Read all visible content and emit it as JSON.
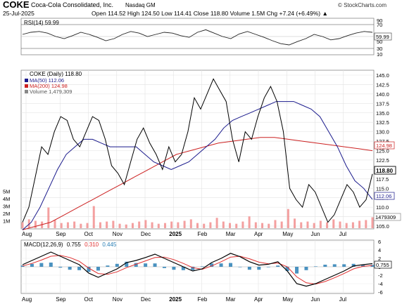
{
  "header": {
    "symbol": "COKE",
    "company": "Coca-Cola Consolidated, Inc.",
    "exchange": "Nasdaq GM",
    "watermark": "© StockCharts.com",
    "date": "25-Jul-2025",
    "quote_line": "Open 114.52  High 124.50  Low 114.41  Close 118.80  Volume 1.5M  Chg +7.24 (+6.49%) ▲"
  },
  "colors": {
    "price": "#000000",
    "ma50": "#1a1a8c",
    "ma200": "#cc2020",
    "volume": "#f08080",
    "macd_hist": "#2a7fb5",
    "grid": "#d0d0d0"
  },
  "rsi_panel": {
    "label": "RSI(14) 59.99",
    "ticks": [
      "70",
      "50",
      "30"
    ],
    "value_badge": "59.99",
    "top_tick": "90",
    "bottom_tick": "10",
    "value": 59.99
  },
  "price_panel": {
    "legend_title": "COKE (Daily) 118.80",
    "legend_ma50": "MA(50) 112.06",
    "legend_ma200": "MA(200) 124.98",
    "legend_volume": "Volume 1,479,309",
    "badge_close": "118.80",
    "badge_ma200": "124.98",
    "badge_ma50": "112.06",
    "badge_volume": "1479309",
    "y_ticks": [
      "145.0",
      "142.5",
      "140.0",
      "137.5",
      "135.0",
      "132.5",
      "130.0",
      "127.5",
      "125.0",
      "122.5",
      "120.0",
      "117.5",
      "115.0",
      "112.5",
      "110.0",
      "107.5",
      "105.0"
    ],
    "volume_ticks": [
      "5M",
      "4M",
      "3M",
      "2M",
      "1M"
    ]
  },
  "macd_panel": {
    "label_prefix": "MACD(12,26,9)",
    "macd": "0.755",
    "signal": "0.310",
    "hist": "0.445",
    "badge": "0.755",
    "ticks": [
      "6",
      "4",
      "2",
      "0",
      "-2",
      "-4",
      "-6"
    ]
  },
  "x_labels": [
    "Aug",
    "Sep",
    "Oct",
    "Nov",
    "Dec",
    "2025",
    "Feb",
    "Mar",
    "Apr",
    "May",
    "Jun",
    "Jul"
  ],
  "chart_data": {
    "type": "line",
    "x_range": [
      "Jul-2024",
      "25-Jul-2025"
    ],
    "ylim": [
      104,
      146
    ],
    "months": [
      "Aug",
      "Sep",
      "Oct",
      "Nov",
      "Dec",
      "2025",
      "Feb",
      "Mar",
      "Apr",
      "May",
      "Jun",
      "Jul"
    ],
    "price_close": [
      106,
      110,
      118,
      126,
      124,
      130,
      134,
      133,
      128,
      126,
      130,
      134,
      133,
      128,
      121,
      119,
      116,
      122,
      128,
      131,
      127,
      124,
      120,
      126,
      122,
      124,
      130,
      139,
      136,
      140,
      144,
      141,
      138,
      128,
      122,
      130,
      128,
      134,
      139,
      142,
      138,
      130,
      115,
      112,
      110,
      116,
      114,
      110,
      106,
      108,
      112,
      116,
      114,
      110,
      112,
      118.8
    ],
    "ma50": [
      104,
      106,
      110,
      115,
      120,
      124,
      126,
      128,
      128,
      127,
      126,
      126,
      126,
      126,
      124,
      122,
      121,
      120,
      121,
      122,
      124,
      126,
      128,
      131,
      133,
      134,
      135,
      136,
      137,
      138,
      138,
      138,
      137,
      136,
      134,
      130,
      126,
      121,
      117,
      115,
      112.06
    ],
    "ma200": [
      104,
      105,
      106,
      108,
      110,
      112,
      114,
      116,
      118,
      120,
      122,
      124,
      125,
      126,
      127,
      127.5,
      128,
      128.5,
      128.5,
      128,
      127.5,
      127,
      126.5,
      126,
      125.5,
      124.98
    ],
    "rsi": [
      55,
      60,
      62,
      58,
      50,
      45,
      52,
      60,
      55,
      48,
      40,
      45,
      55,
      62,
      58,
      50,
      55,
      60,
      58,
      52,
      48,
      60,
      66,
      58,
      50,
      45,
      56,
      62,
      55,
      48,
      40,
      33,
      30,
      38,
      45,
      55,
      50,
      42,
      45,
      52,
      58,
      62,
      59.99
    ],
    "macd": [
      0.5,
      1.5,
      2.5,
      3.5,
      2.5,
      1.5,
      0.5,
      -1.5,
      -2.5,
      -1.5,
      -0.5,
      1,
      1.5,
      2.2,
      3,
      2,
      1,
      0,
      -1,
      -0.5,
      1,
      2,
      3.2,
      2.4,
      1.2,
      0.4,
      0.6,
      1.2,
      -1,
      -4,
      -4.6,
      -4,
      -3,
      -2,
      -1,
      0.2,
      0.5,
      0.755
    ],
    "signal": [
      0.2,
      0.8,
      1.6,
      2.5,
      2.7,
      2.2,
      1.3,
      -0.3,
      -1.6,
      -1.8,
      -1.2,
      -0.2,
      0.6,
      1.4,
      2.2,
      2.3,
      1.7,
      0.8,
      -0.2,
      -0.6,
      0.2,
      1.2,
      2.3,
      2.5,
      1.9,
      1.1,
      0.7,
      0.9,
      0,
      -2.4,
      -3.8,
      -4.1,
      -3.5,
      -2.6,
      -1.6,
      -0.5,
      0.1,
      0.31
    ],
    "volume_millions": [
      0.8,
      1.2,
      1.0,
      0.9,
      2.8,
      1.1,
      0.7,
      0.8,
      0.9,
      0.6,
      0.7,
      3.0,
      0.8,
      0.9,
      1.0,
      0.6,
      0.5,
      0.7,
      0.9,
      1.1,
      0.8,
      0.6,
      0.7,
      0.9,
      0.8,
      1.0,
      1.2,
      0.7,
      0.6,
      0.8,
      1.4,
      0.9,
      0.7,
      0.6,
      0.9,
      1.6,
      0.8,
      0.7,
      0.6,
      1.1,
      0.9,
      2.6,
      1.3,
      0.8,
      0.9,
      0.7,
      1.0,
      0.8,
      1.2,
      0.9,
      0.7,
      0.8,
      1.0,
      1.1,
      1.48
    ]
  }
}
